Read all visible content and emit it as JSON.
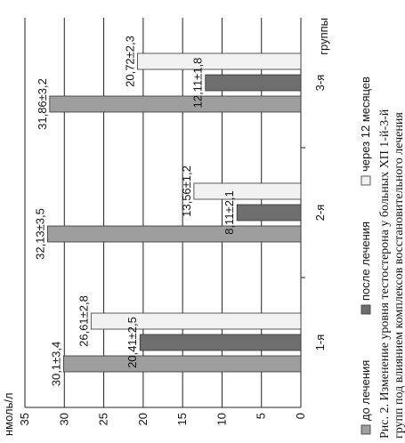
{
  "chart_data": {
    "type": "bar",
    "orientation": "horizontal-rotated",
    "categories": [
      "1-я",
      "2-я",
      "3-я"
    ],
    "category_axis_label": "группы",
    "value_axis_label": "нмоль/л",
    "ylim": [
      0,
      35
    ],
    "ticks": [
      0,
      5,
      10,
      15,
      20,
      25,
      30,
      35
    ],
    "grid": true,
    "legend_position": "bottom",
    "series": [
      {
        "name": "до лечения",
        "color": "#9e9e9e",
        "values": [
          30.1,
          32.13,
          31.86
        ],
        "labels": [
          "30,1±3,4",
          "32,13±3,5",
          "31,86±3,2"
        ]
      },
      {
        "name": "после лечения",
        "color": "#6e6e6e",
        "values": [
          20.41,
          8.11,
          12.11
        ],
        "labels": [
          "20,41±2,5",
          "8,11±2,1",
          "12,11±1,8"
        ]
      },
      {
        "name": "через 12 месяцев",
        "color": "#f2f2f2",
        "values": [
          26.61,
          13.56,
          20.72
        ],
        "labels": [
          "26,61±2,8",
          "13,56±1,2",
          "20,72±2,3"
        ]
      }
    ]
  },
  "caption": {
    "line1": "Рис. 2. Изменение уровня тестостерона у больных ХП 1-й-3-й",
    "line2": "групп под влиянием комплексов восстановительного лечения"
  }
}
